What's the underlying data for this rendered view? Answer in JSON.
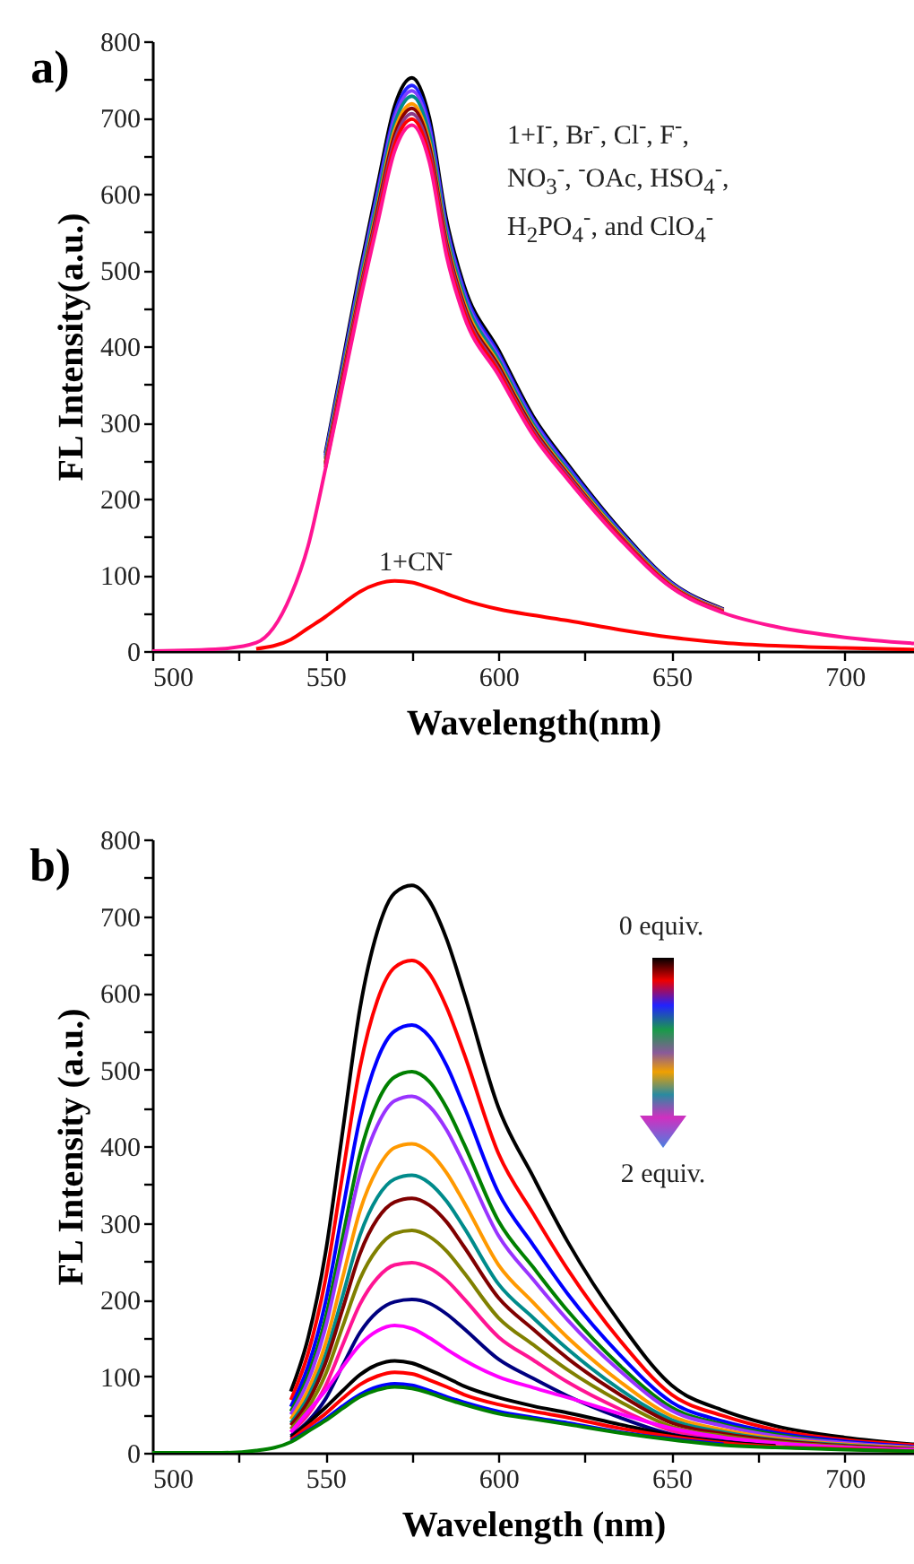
{
  "chart_data": [
    {
      "type": "line",
      "title": "a)",
      "xlabel": "Wavelength(nm)",
      "ylabel": "FL Intensity(a.u.)",
      "x": [
        500,
        520,
        530,
        540,
        545,
        550,
        555,
        560,
        565,
        570,
        575,
        580,
        585,
        590,
        600,
        610,
        620,
        635,
        650,
        665,
        680,
        700,
        720
      ],
      "xlim": [
        500,
        720
      ],
      "ylim": [
        0,
        800
      ],
      "xticks": [
        500,
        {
          "value": 525,
          "label": null
        },
        550,
        {
          "value": 575,
          "label": null
        },
        600,
        {
          "value": 625,
          "label": null
        },
        650,
        {
          "value": 675,
          "label": null
        },
        700
      ],
      "yticks": [
        0,
        {
          "value": 50,
          "label": null
        },
        100,
        {
          "value": 150,
          "label": null
        },
        200,
        {
          "value": 250,
          "label": null
        },
        300,
        {
          "value": 350,
          "label": null
        },
        400,
        {
          "value": 450,
          "label": null
        },
        500,
        {
          "value": 550,
          "label": null
        },
        600,
        {
          "value": 650,
          "label": null
        },
        700,
        {
          "value": 750,
          "label": null
        },
        800
      ],
      "series": [
        {
          "color": "#000000",
          "values": [
            null,
            null,
            null,
            null,
            null,
            260,
            380,
            500,
            610,
            715,
            752,
            700,
            565,
            480,
            395,
            308,
            245,
            160,
            90,
            55,
            null,
            null,
            null
          ]
        },
        {
          "color": "#2222ff",
          "values": [
            null,
            null,
            null,
            null,
            null,
            257,
            375,
            493,
            602,
            705,
            742,
            691,
            557,
            474,
            390,
            304,
            242,
            158,
            89,
            54,
            null,
            null,
            null
          ]
        },
        {
          "color": "#7f3fff",
          "values": [
            null,
            null,
            null,
            null,
            null,
            254,
            371,
            489,
            596,
            699,
            735,
            684,
            552,
            469,
            386,
            301,
            239,
            156,
            88,
            54,
            null,
            null,
            null
          ]
        },
        {
          "color": "#008b8b",
          "values": [
            null,
            null,
            null,
            null,
            null,
            252,
            368,
            484,
            591,
            692,
            728,
            678,
            547,
            465,
            382,
            298,
            237,
            155,
            87,
            53,
            null,
            null,
            null
          ]
        },
        {
          "color": "#ff9900",
          "values": [
            null,
            null,
            null,
            null,
            null,
            248,
            363,
            477,
            582,
            683,
            718,
            668,
            539,
            458,
            377,
            294,
            234,
            153,
            86,
            53,
            null,
            null,
            null
          ]
        },
        {
          "color": "#8b0000",
          "values": [
            null,
            null,
            null,
            null,
            null,
            246,
            360,
            473,
            578,
            677,
            712,
            663,
            535,
            454,
            374,
            292,
            232,
            151,
            85,
            52,
            null,
            null,
            null
          ]
        },
        {
          "color": "#8b3a8b",
          "values": [
            null,
            null,
            null,
            null,
            null,
            244,
            356,
            469,
            572,
            670,
            705,
            656,
            530,
            450,
            370,
            289,
            230,
            150,
            84,
            52,
            null,
            null,
            null
          ]
        },
        {
          "color": "#ff0000",
          "values": [
            null,
            null,
            null,
            null,
            null,
            241,
            353,
            464,
            566,
            664,
            698,
            650,
            524,
            446,
            367,
            286,
            227,
            149,
            84,
            51,
            null,
            null,
            null
          ]
        },
        {
          "color": "#ff1493",
          "values": [
            0,
            3,
            11,
            73,
            138,
            239,
            349,
            459,
            560,
            656,
            690,
            642,
            518,
            440,
            362,
            283,
            225,
            147,
            83,
            50,
            32,
            18,
            10
          ]
        },
        {
          "color": "#ff0000",
          "values": [
            null,
            null,
            3,
            15,
            30,
            45,
            62,
            78,
            88,
            92,
            90,
            83,
            75,
            67,
            55,
            47,
            40,
            28,
            18,
            11,
            7,
            4,
            2
          ]
        }
      ],
      "annotations": [
        "1+I$^{-}$, Br$^{-}$, Cl$^{-}$, F$^{-}$,\nNO$_{3}$$^{-}$, $^{-}$OAc, HSO$_{4}$$^{-}$,\nH$_{2}$PO$_{4}$$^{-}$, and ClO$_{4}$$^{-}$",
        "1+CN$^{-}$"
      ]
    },
    {
      "type": "line",
      "title": "b)",
      "xlabel": "Wavelength (nm)",
      "ylabel": "FL Intensity (a.u.)",
      "x": [
        500,
        520,
        530,
        540,
        545,
        550,
        555,
        560,
        565,
        570,
        575,
        580,
        585,
        590,
        600,
        610,
        620,
        635,
        650,
        665,
        680,
        700,
        720
      ],
      "xlim": [
        500,
        720
      ],
      "ylim": [
        0,
        800
      ],
      "xticks": [
        500,
        {
          "value": 525,
          "label": null
        },
        550,
        {
          "value": 575,
          "label": null
        },
        600,
        {
          "value": 625,
          "label": null
        },
        650,
        {
          "value": 675,
          "label": null
        },
        700
      ],
      "yticks": [
        0,
        {
          "value": 50,
          "label": null
        },
        100,
        {
          "value": 150,
          "label": null
        },
        200,
        {
          "value": 250,
          "label": null
        },
        300,
        {
          "value": 350,
          "label": null
        },
        400,
        {
          "value": 450,
          "label": null
        },
        500,
        {
          "value": 550,
          "label": null
        },
        600,
        {
          "value": 650,
          "label": null
        },
        700,
        {
          "value": 750,
          "label": null
        },
        800
      ],
      "series": [
        {
          "color": "#000000",
          "values": [
            null,
            null,
            null,
            80,
            150,
            260,
            420,
            580,
            680,
            730,
            740,
            720,
            670,
            600,
            450,
            360,
            275,
            170,
            88,
            55,
            35,
            20,
            11
          ]
        },
        {
          "color": "#ff0000",
          "values": [
            null,
            null,
            null,
            69,
            130,
            226,
            364,
            503,
            590,
            633,
            642,
            625,
            581,
            521,
            390,
            312,
            239,
            147,
            76,
            48,
            30,
            17,
            10
          ]
        },
        {
          "color": "#0000ff",
          "values": [
            null,
            null,
            null,
            60,
            113,
            196,
            317,
            437,
            513,
            550,
            558,
            543,
            505,
            452,
            339,
            271,
            207,
            128,
            66,
            41,
            26,
            15,
            8
          ]
        },
        {
          "color": "#008000",
          "values": [
            null,
            null,
            null,
            54,
            101,
            175,
            282,
            390,
            457,
            490,
            497,
            484,
            450,
            403,
            302,
            242,
            185,
            114,
            59,
            37,
            24,
            13,
            7
          ]
        },
        {
          "color": "#9933ff",
          "values": [
            null,
            null,
            null,
            50,
            94,
            163,
            264,
            364,
            427,
            459,
            465,
            452,
            421,
            377,
            283,
            226,
            173,
            107,
            55,
            35,
            22,
            13,
            7
          ]
        },
        {
          "color": "#ff9900",
          "values": [
            null,
            null,
            null,
            44,
            82,
            142,
            229,
            316,
            370,
            398,
            403,
            392,
            365,
            327,
            245,
            196,
            150,
            93,
            48,
            30,
            19,
            11,
            6
          ]
        },
        {
          "color": "#008b8b",
          "values": [
            null,
            null,
            null,
            39,
            73,
            127,
            205,
            284,
            333,
            357,
            362,
            352,
            328,
            294,
            220,
            176,
            135,
            83,
            43,
            27,
            17,
            10,
            5
          ]
        },
        {
          "color": "#800000",
          "values": [
            null,
            null,
            null,
            36,
            67,
            117,
            188,
            260,
            305,
            327,
            332,
            323,
            301,
            269,
            202,
            161,
            123,
            76,
            39,
            25,
            16,
            9,
            5
          ]
        },
        {
          "color": "#808000",
          "values": [
            null,
            null,
            null,
            31,
            59,
            102,
            165,
            227,
            266,
            286,
            290,
            282,
            263,
            235,
            176,
            141,
            108,
            67,
            34,
            22,
            14,
            8,
            4
          ]
        },
        {
          "color": "#ff1493",
          "values": [
            null,
            null,
            null,
            27,
            50,
            87,
            141,
            194,
            228,
            245,
            248,
            241,
            225,
            201,
            151,
            121,
            92,
            57,
            29,
            18,
            12,
            null,
            null
          ]
        },
        {
          "color": "#000080",
          "values": [
            null,
            null,
            null,
            22,
            41,
            70,
            114,
            157,
            184,
            197,
            200,
            195,
            181,
            162,
            122,
            97,
            74,
            46,
            24,
            15,
            9,
            null,
            null
          ]
        },
        {
          "color": "#ff00ff",
          "values": [
            null,
            null,
            null,
            27,
            54,
            81,
            112,
            141,
            159,
            166,
            162,
            150,
            135,
            121,
            99,
            85,
            72,
            51,
            32,
            20,
            13,
            7,
            4
          ]
        },
        {
          "color": "#000000",
          "values": [
            null,
            null,
            null,
            20,
            39,
            59,
            81,
            102,
            115,
            120,
            117,
            108,
            98,
            87,
            72,
            61,
            52,
            37,
            23,
            14,
            9,
            null,
            null
          ]
        },
        {
          "color": "#ff0000",
          "values": [
            null,
            null,
            null,
            17,
            34,
            51,
            71,
            89,
            100,
            105,
            103,
            95,
            86,
            76,
            63,
            54,
            46,
            32,
            21,
            13,
            8,
            5,
            2
          ]
        },
        {
          "color": "#0000ff",
          "values": [
            null,
            null,
            null,
            15,
            29,
            44,
            61,
            76,
            86,
            90,
            88,
            81,
            73,
            66,
            54,
            46,
            39,
            27,
            18,
            11,
            null,
            null,
            null
          ]
        },
        {
          "color": "#008000",
          "values": [
            0,
            0,
            3,
            14,
            28,
            42,
            58,
            73,
            82,
            86,
            84,
            78,
            70,
            63,
            51,
            44,
            37,
            26,
            17,
            10,
            7,
            4,
            2
          ]
        }
      ],
      "annotations": [
        "0 equiv.",
        "2 equiv."
      ]
    }
  ]
}
